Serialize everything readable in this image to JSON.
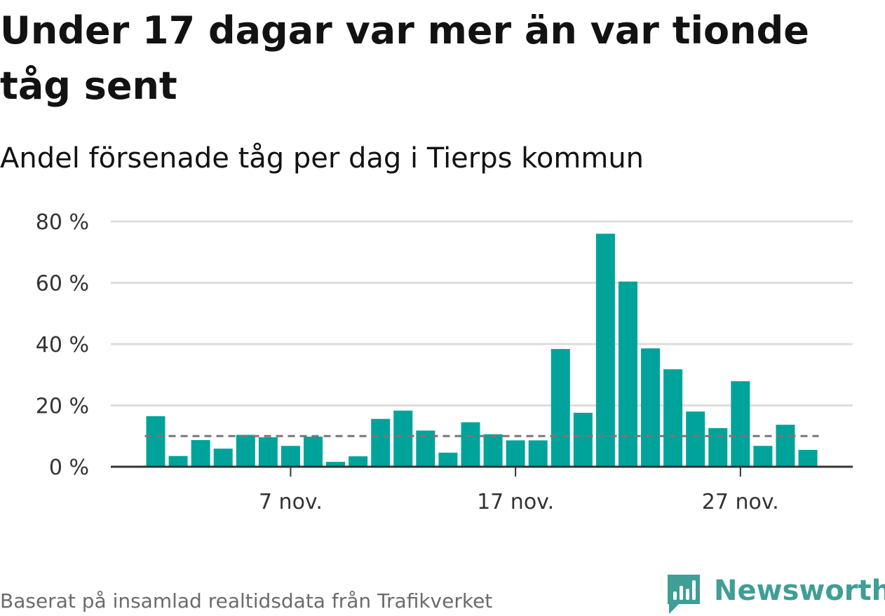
{
  "header": {
    "title": "Under 17 dagar var mer än var tionde tåg sent",
    "subtitle": "Andel försenade tåg per dag i Tierps kommun"
  },
  "footer": {
    "source": "Baserat på insamlad realtidsdata från Trafikverket",
    "brand": "Newsworthy"
  },
  "colors": {
    "bar": "#00a39a",
    "reference_line": "#777777",
    "grid": "#dddddd",
    "axis": "#333333",
    "brand": "#3f9e96"
  },
  "chart_data": {
    "type": "bar",
    "x": [
      "1 nov.",
      "2 nov.",
      "3 nov.",
      "4 nov.",
      "5 nov.",
      "6 nov.",
      "7 nov.",
      "8 nov.",
      "9 nov.",
      "10 nov.",
      "11 nov.",
      "12 nov.",
      "13 nov.",
      "14 nov.",
      "15 nov.",
      "16 nov.",
      "17 nov.",
      "18 nov.",
      "19 nov.",
      "20 nov.",
      "21 nov.",
      "22 nov.",
      "23 nov.",
      "24 nov.",
      "25 nov.",
      "26 nov.",
      "27 nov.",
      "28 nov.",
      "29 nov.",
      "30 nov."
    ],
    "values": [
      16.5,
      3.5,
      8.7,
      5.9,
      10.4,
      9.6,
      6.8,
      9.8,
      1.6,
      3.4,
      15.6,
      18.3,
      11.8,
      4.6,
      14.5,
      10.6,
      8.6,
      8.6,
      38.4,
      17.6,
      76.0,
      60.4,
      38.6,
      31.8,
      18.0,
      12.6,
      27.9,
      6.8,
      13.7,
      5.5
    ],
    "reference_line": 10,
    "ylim": [
      0,
      80
    ],
    "yticks": [
      0,
      20,
      40,
      60,
      80
    ],
    "ytick_labels": [
      "0 %",
      "20 %",
      "40 %",
      "60 %",
      "80 %"
    ],
    "xticks": [
      "7 nov.",
      "17 nov.",
      "27 nov."
    ],
    "xlabel": "",
    "ylabel": "",
    "grid": true,
    "legend": "none"
  }
}
